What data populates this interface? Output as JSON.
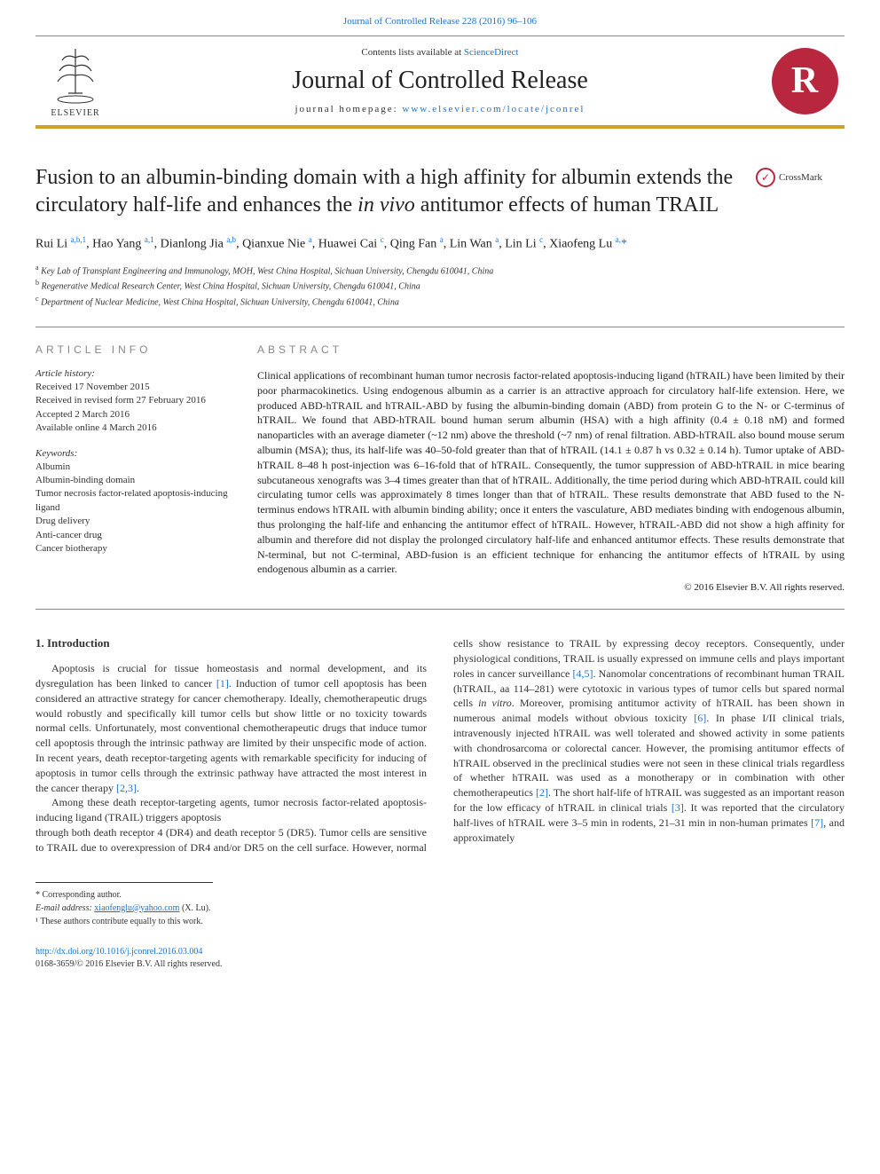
{
  "colors": {
    "accent_orange": "#d89c2a",
    "link_blue": "#1a73cc",
    "logo_red": "#b8273d",
    "text": "#222222",
    "muted": "#888888",
    "background": "#ffffff"
  },
  "top_link": "Journal of Controlled Release 228 (2016) 96–106",
  "masthead": {
    "elsevier_label": "ELSEVIER",
    "contents_prefix": "Contents lists available at ",
    "contents_link": "ScienceDirect",
    "journal_name": "Journal of Controlled Release",
    "homepage_prefix": "journal homepage: ",
    "homepage_url": "www.elsevier.com/locate/jconrel",
    "r_logo": "R"
  },
  "article": {
    "title_pre": "Fusion to an albumin-binding domain with a high affinity for albumin extends the circulatory half-life and enhances the ",
    "title_italic": "in vivo",
    "title_post": " antitumor effects of human TRAIL",
    "crossmark": "CrossMark",
    "authors_html": "Rui Li <sup>a,b,1</sup>, Hao Yang <sup>a,1</sup>, Dianlong Jia <sup>a,b</sup>, Qianxue Nie <sup>a</sup>, Huawei Cai <sup>c</sup>, Qing Fan <sup>a</sup>, Lin Wan <sup>a</sup>, Lin Li <sup>c</sup>, Xiaofeng Lu <sup>a,</sup><span class='star'>*</span>",
    "affiliations": [
      {
        "sup": "a",
        "text": "Key Lab of Transplant Engineering and Immunology, MOH, West China Hospital, Sichuan University, Chengdu 610041, China"
      },
      {
        "sup": "b",
        "text": "Regenerative Medical Research Center, West China Hospital, Sichuan University, Chengdu 610041, China"
      },
      {
        "sup": "c",
        "text": "Department of Nuclear Medicine, West China Hospital, Sichuan University, Chengdu 610041, China"
      }
    ]
  },
  "info": {
    "heading": "article info",
    "history_label": "Article history:",
    "history": [
      "Received 17 November 2015",
      "Received in revised form 27 February 2016",
      "Accepted 2 March 2016",
      "Available online 4 March 2016"
    ],
    "keywords_label": "Keywords:",
    "keywords": [
      "Albumin",
      "Albumin-binding domain",
      "Tumor necrosis factor-related apoptosis-inducing ligand",
      "Drug delivery",
      "Anti-cancer drug",
      "Cancer biotherapy"
    ]
  },
  "abstract": {
    "heading": "abstract",
    "text": "Clinical applications of recombinant human tumor necrosis factor-related apoptosis-inducing ligand (hTRAIL) have been limited by their poor pharmacokinetics. Using endogenous albumin as a carrier is an attractive approach for circulatory half-life extension. Here, we produced ABD-hTRAIL and hTRAIL-ABD by fusing the albumin-binding domain (ABD) from protein G to the N- or C-terminus of hTRAIL. We found that ABD-hTRAIL bound human serum albumin (HSA) with a high affinity (0.4 ± 0.18 nM) and formed nanoparticles with an average diameter (~12 nm) above the threshold (~7 nm) of renal filtration. ABD-hTRAIL also bound mouse serum albumin (MSA); thus, its half-life was 40–50-fold greater than that of hTRAIL (14.1 ± 0.87 h vs 0.32 ± 0.14 h). Tumor uptake of ABD-hTRAIL 8–48 h post-injection was 6–16-fold that of hTRAIL. Consequently, the tumor suppression of ABD-hTRAIL in mice bearing subcutaneous xenografts was 3–4 times greater than that of hTRAIL. Additionally, the time period during which ABD-hTRAIL could kill circulating tumor cells was approximately 8 times longer than that of hTRAIL. These results demonstrate that ABD fused to the N-terminus endows hTRAIL with albumin binding ability; once it enters the vasculature, ABD mediates binding with endogenous albumin, thus prolonging the half-life and enhancing the antitumor effect of hTRAIL. However, hTRAIL-ABD did not show a high affinity for albumin and therefore did not display the prolonged circulatory half-life and enhanced antitumor effects. These results demonstrate that N-terminal, but not C-terminal, ABD-fusion is an efficient technique for enhancing the antitumor effects of hTRAIL by using endogenous albumin as a carrier.",
    "copyright": "© 2016 Elsevier B.V. All rights reserved."
  },
  "body": {
    "section_heading": "1. Introduction",
    "para1": "Apoptosis is crucial for tissue homeostasis and normal development, and its dysregulation has been linked to cancer [1]. Induction of tumor cell apoptosis has been considered an attractive strategy for cancer chemotherapy. Ideally, chemotherapeutic drugs would robustly and specifically kill tumor cells but show little or no toxicity towards normal cells. Unfortunately, most conventional chemotherapeutic drugs that induce tumor cell apoptosis through the intrinsic pathway are limited by their unspecific mode of action. In recent years, death receptor-targeting agents with remarkable specificity for inducing of apoptosis in tumor cells through the extrinsic pathway have attracted the most interest in the cancer therapy [2,3].",
    "para2": "Among these death receptor-targeting agents, tumor necrosis factor-related apoptosis-inducing ligand (TRAIL) triggers apoptosis",
    "para3": "through both death receptor 4 (DR4) and death receptor 5 (DR5). Tumor cells are sensitive to TRAIL due to overexpression of DR4 and/or DR5 on the cell surface. However, normal cells show resistance to TRAIL by expressing decoy receptors. Consequently, under physiological conditions, TRAIL is usually expressed on immune cells and plays important roles in cancer surveillance [4,5]. Nanomolar concentrations of recombinant human TRAIL (hTRAIL, aa 114–281) were cytotoxic in various types of tumor cells but spared normal cells in vitro. Moreover, promising antitumor activity of hTRAIL has been shown in numerous animal models without obvious toxicity [6]. In phase I/II clinical trials, intravenously injected hTRAIL was well tolerated and showed activity in some patients with chondrosarcoma or colorectal cancer. However, the promising antitumor effects of hTRAIL observed in the preclinical studies were not seen in these clinical trials regardless of whether hTRAIL was used as a monotherapy or in combination with other chemotherapeutics [2]. The short half-life of hTRAIL was suggested as an important reason for the low efficacy of hTRAIL in clinical trials [3]. It was reported that the circulatory half-lives of hTRAIL were 3–5 min in rodents, 21–31 min in non-human primates [7], and approximately"
  },
  "footnotes": {
    "corresponding": "* Corresponding author.",
    "email_label": "E-mail address: ",
    "email": "xiaofenglu@yahoo.com",
    "email_suffix": " (X. Lu).",
    "contrib": "¹ These authors contribute equally to this work."
  },
  "doi": {
    "url": "http://dx.doi.org/10.1016/j.jconrel.2016.03.004",
    "issn": "0168-3659/© 2016 Elsevier B.V. All rights reserved."
  }
}
